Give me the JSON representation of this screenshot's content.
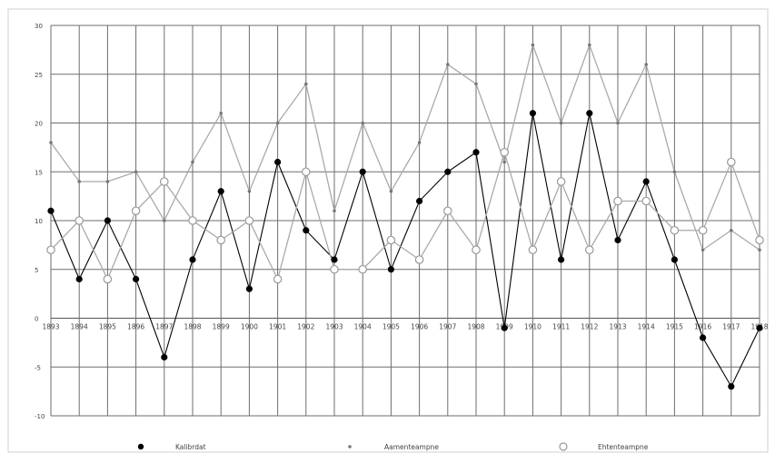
{
  "chart_data": {
    "type": "line",
    "x": [
      "1893",
      "1894",
      "1895",
      "1896",
      "1897",
      "1898",
      "1899",
      "1900",
      "1901",
      "1902",
      "1903",
      "1904",
      "1905",
      "1906",
      "1907",
      "1908",
      "1909",
      "1910",
      "1911",
      "1912",
      "1913",
      "1914",
      "1915",
      "1916",
      "1917",
      "1918"
    ],
    "ylim": [
      -10,
      30
    ],
    "yticks": [
      "30",
      "25",
      "20",
      "15",
      "10",
      "5",
      "0",
      "-5",
      "-10"
    ],
    "grid": true,
    "legend_position": "bottom",
    "series": [
      {
        "name": "Kalibrdat",
        "color": "#000000",
        "marker": "filled-circle",
        "values": [
          11,
          4,
          10,
          4,
          -4,
          6,
          13,
          3,
          16,
          9,
          6,
          15,
          5,
          12,
          15,
          17,
          -1,
          21,
          6,
          21,
          8,
          14,
          6,
          -2,
          -7,
          -1
        ]
      },
      {
        "name": "Aamenteampne",
        "color": "#aaaaaa",
        "marker": "dot",
        "values": [
          18,
          14,
          14,
          15,
          10,
          16,
          21,
          13,
          20,
          24,
          11,
          20,
          13,
          18,
          26,
          24,
          16,
          28,
          20,
          28,
          20,
          26,
          15,
          7,
          9,
          7
        ]
      },
      {
        "name": "Ehtenteampne",
        "color": "#aaaaaa",
        "marker": "open-circle",
        "values": [
          7,
          10,
          4,
          11,
          14,
          10,
          8,
          10,
          4,
          15,
          5,
          5,
          8,
          6,
          11,
          7,
          17,
          7,
          14,
          7,
          12,
          12,
          9,
          9,
          16,
          8
        ]
      }
    ]
  }
}
